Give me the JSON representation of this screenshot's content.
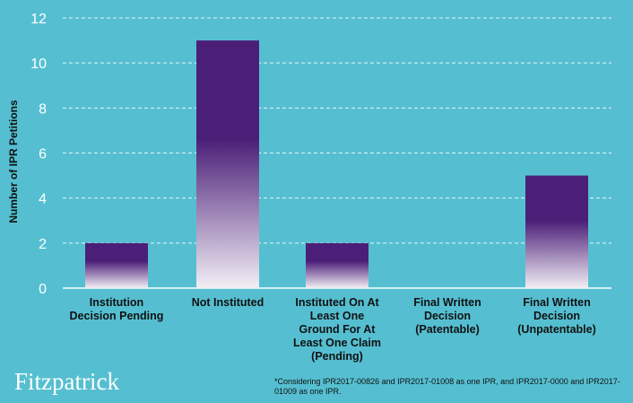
{
  "chart_data": {
    "type": "bar",
    "title": "",
    "xlabel": "",
    "ylabel": "Number of IPR Petitions",
    "ylim": [
      0,
      12
    ],
    "yticks": [
      0,
      2,
      4,
      6,
      8,
      10,
      12
    ],
    "categories": [
      "Institution\nDecision Pending",
      "Not Instituted",
      "Instituted On At\nLeast One\nGround For At\nLeast One Claim\n(Pending)",
      "Final Written\nDecision\n(Patentable)",
      "Final Written\nDecision\n(Unpatentable)"
    ],
    "values": [
      2,
      11,
      2,
      0,
      5
    ],
    "grid": true,
    "colors": {
      "bar_top": "#4b1f78",
      "bar_bottom": "#ffffff",
      "gridline": "#ffffff",
      "background": "#55bfd1"
    }
  },
  "brand": {
    "logo": "Fitzpatrick"
  },
  "footnote": "*Considering IPR2017-00826  and IPR2017-01008  as one IPR, and IPR2017-0000 and IPR2017-01009  as one IPR."
}
